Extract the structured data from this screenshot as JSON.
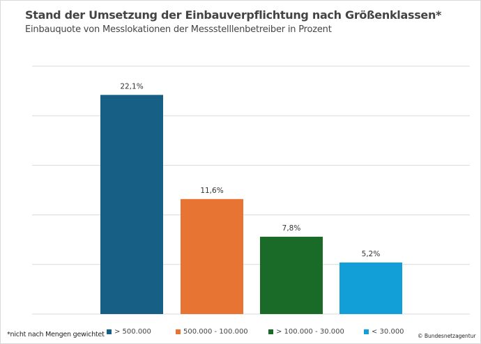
{
  "chart_data": {
    "type": "bar",
    "title": "Stand der Umsetzung der Einbauverpflichtung nach Größenklassen*",
    "subtitle": "Einbauquote von Messlokationen der Messstelllenbetreiber in Prozent",
    "categories": [
      "> 500.000",
      "500.000 - 100.000",
      "> 100.000 - 30.000",
      "< 30.000"
    ],
    "values": [
      22.1,
      11.6,
      7.8,
      5.2
    ],
    "data_labels": [
      "22,1%",
      "11,6%",
      "7,8%",
      "5,2%"
    ],
    "colors": [
      "#185f86",
      "#e87433",
      "#1a6b27",
      "#129fd8"
    ],
    "ylim": [
      0,
      25
    ],
    "y_gridlines": [
      5,
      10,
      15,
      20,
      25
    ],
    "grid": true,
    "legend": "bottom",
    "footnote": "*nicht nach Mengen gewichtet",
    "credit": "© Bundesnetzagentur"
  }
}
